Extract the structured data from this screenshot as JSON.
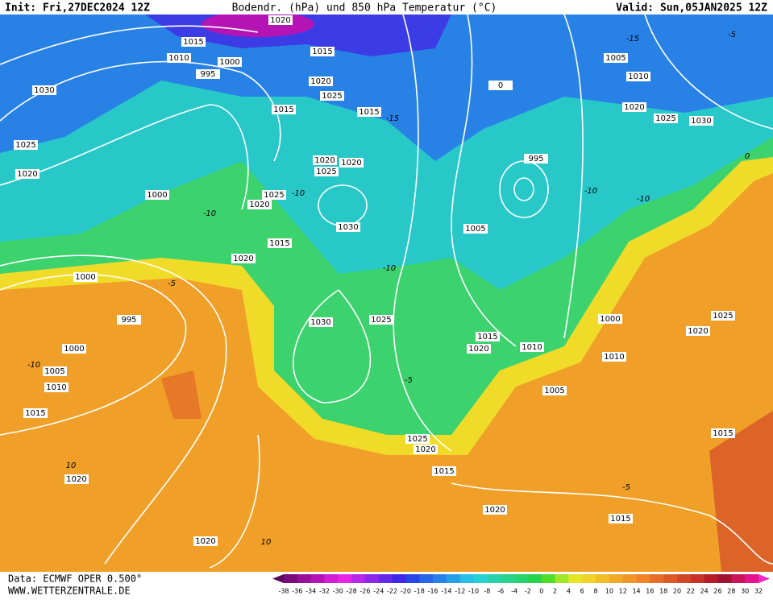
{
  "header": {
    "init": "Init: Fri,27DEC2024 12Z",
    "title": "Bodendr. (hPa) und 850 hPa Temperatur (°C)",
    "valid": "Valid: Sun,05JAN2025 12Z"
  },
  "footer": {
    "data_source": "Data: ECMWF OPER 0.500°",
    "website": "WWW.WETTERZENTRALE.DE"
  },
  "isobar_labels": [
    1020,
    1015,
    1010,
    1000,
    995,
    1030,
    1025,
    1020,
    1000,
    1015,
    1020,
    1025,
    1015,
    1015,
    1020,
    1025,
    1020,
    1025,
    1020,
    1030,
    1015,
    1020,
    1000,
    995,
    1000,
    1005,
    1010,
    1015,
    1030,
    1025,
    1005,
    995,
    1005,
    1010,
    1020,
    1025,
    1030,
    1015,
    1020,
    1010,
    1005,
    1000,
    1010,
    1025,
    1020,
    1015,
    1025,
    1020,
    1015,
    1020,
    1020,
    1015,
    1020,
    0
  ],
  "temperature_labels": [
    -15,
    -10,
    -10,
    -10,
    -10,
    -10,
    -5,
    -5,
    -10,
    -5,
    10,
    10,
    -15,
    -5,
    0
  ],
  "color_scale": {
    "ticks": [
      -38,
      -36,
      -34,
      -32,
      -30,
      -28,
      -26,
      -24,
      -22,
      -20,
      -18,
      -16,
      -14,
      -12,
      -10,
      -8,
      -6,
      -4,
      -2,
      0,
      2,
      4,
      6,
      8,
      10,
      12,
      14,
      16,
      18,
      20,
      22,
      24,
      26,
      28,
      30,
      32
    ],
    "colors": [
      "#5a0a5a",
      "#780c78",
      "#960f96",
      "#b414b4",
      "#d21ed2",
      "#e628e6",
      "#b428e6",
      "#8c28e6",
      "#6428e6",
      "#3c28e6",
      "#2846e6",
      "#2864e6",
      "#2882e6",
      "#28a0e6",
      "#28bee6",
      "#28d2d2",
      "#28d2aa",
      "#28d28c",
      "#28d26e",
      "#28d250",
      "#50dc28",
      "#a0e628",
      "#e6e628",
      "#f0d228",
      "#f0be28",
      "#f0aa28",
      "#f09628",
      "#f08228",
      "#e66e28",
      "#dc5a28",
      "#d24628",
      "#c83228",
      "#b41e28",
      "#a01432",
      "#c8145a",
      "#e6148c",
      "#f028c8"
    ]
  }
}
